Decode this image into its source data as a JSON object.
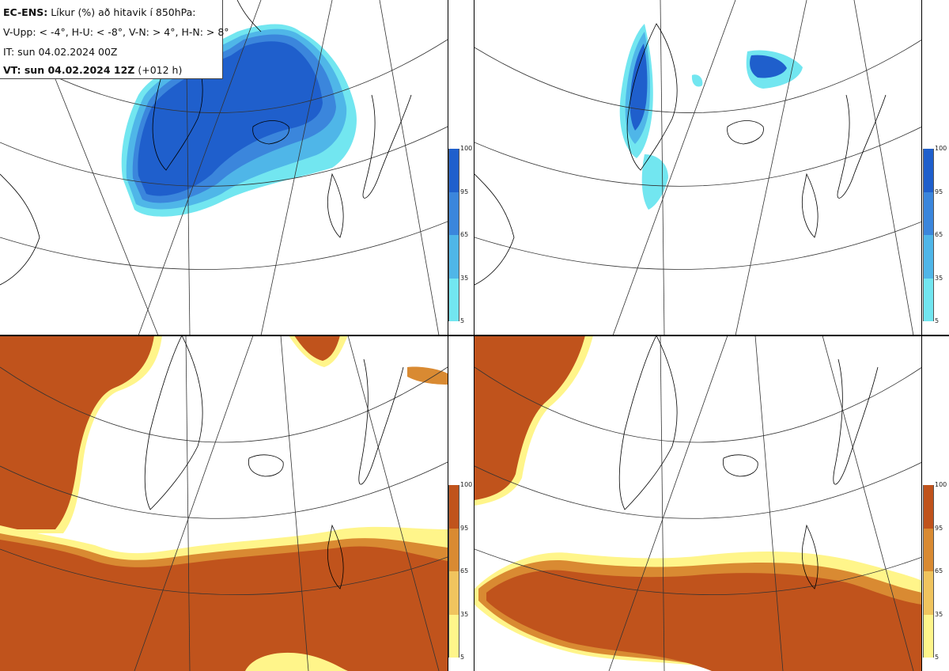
{
  "info": {
    "line1_bold": "EC-ENS:",
    "line1_rest": "Líkur (%) að hitavik í 850hPa:",
    "line2": "V-Upp: < -4°, H-U: < -8°, V-N: > 4°, H-N: > 8°",
    "line3": "IT: sun 04.02.2024 00Z",
    "line4_bold": "VT: sun 04.02.2024 12Z",
    "line4_rest": "(+012 h)"
  },
  "panels": [
    {
      "id": "V-Upp",
      "colorbar": {
        "labels": [
          "100",
          "95",
          "65",
          "35",
          "5"
        ],
        "colors": [
          "#1f5fcc",
          "#3b86dc",
          "#4fb6e8",
          "#72e6f0"
        ]
      }
    },
    {
      "id": "H-U",
      "colorbar": {
        "labels": [
          "100",
          "95",
          "65",
          "35",
          "5"
        ],
        "colors": [
          "#1f5fcc",
          "#3b86dc",
          "#4fb6e8",
          "#72e6f0"
        ]
      }
    },
    {
      "id": "V-N",
      "colorbar": {
        "labels": [
          "100",
          "95",
          "65",
          "35",
          "5"
        ],
        "colors": [
          "#c0531c",
          "#d98a32",
          "#f0c45e",
          "#fff58a"
        ]
      }
    },
    {
      "id": "H-N",
      "colorbar": {
        "labels": [
          "100",
          "95",
          "65",
          "35",
          "5"
        ],
        "colors": [
          "#c0531c",
          "#d98a32",
          "#f0c45e",
          "#fff58a"
        ]
      }
    }
  ]
}
